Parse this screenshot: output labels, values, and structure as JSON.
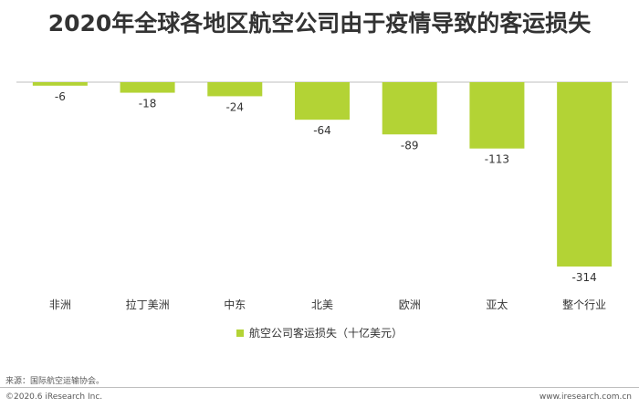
{
  "title": "2020年全球各地区航空公司由于疫情导致的客运损失",
  "legend_label": "航空公司客运损失（十亿美元）",
  "source": "来源：国际航空运输协会。",
  "copyright": "©2020.6 iResearch Inc.",
  "website": "www.iresearch.com.cn",
  "colors": {
    "bar": "#b3d335",
    "axis": "#bfbfbf",
    "text": "#333333"
  },
  "chart_data": {
    "type": "bar",
    "categories": [
      "非洲",
      "拉丁美洲",
      "中东",
      "北美",
      "欧洲",
      "亚太",
      "整个行业"
    ],
    "series": [
      {
        "name": "航空公司客运损失（十亿美元）",
        "values": [
          -6,
          -18,
          -24,
          -64,
          -89,
          -113,
          -314
        ]
      }
    ],
    "data_labels": [
      "-6",
      "-18",
      "-24",
      "-64",
      "-89",
      "-113",
      "-314"
    ],
    "ylim": [
      -314,
      0
    ],
    "grid": false,
    "legend_position": "bottom"
  }
}
